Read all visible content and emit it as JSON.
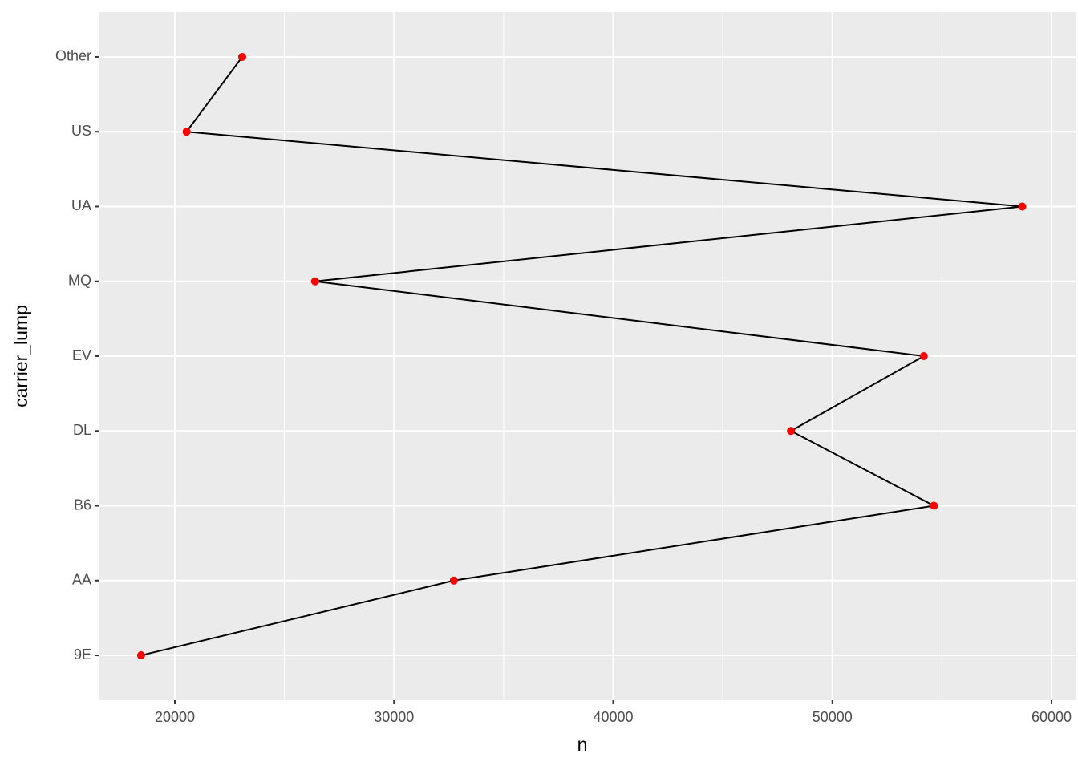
{
  "chart_data": {
    "type": "line",
    "orientation": "horizontal",
    "xlabel": "n",
    "ylabel": "carrier_lump",
    "categories": [
      "9E",
      "AA",
      "B6",
      "DL",
      "EV",
      "MQ",
      "UA",
      "US",
      "Other"
    ],
    "values": [
      18460,
      32729,
      54635,
      48110,
      54173,
      26397,
      58665,
      20536,
      23073
    ],
    "line_color": "#000000",
    "point_color": "#ff0000",
    "xlim": [
      16524,
      61134
    ],
    "xticks": [
      20000,
      30000,
      40000,
      50000,
      60000
    ],
    "grid": true,
    "minor_grid": true
  }
}
